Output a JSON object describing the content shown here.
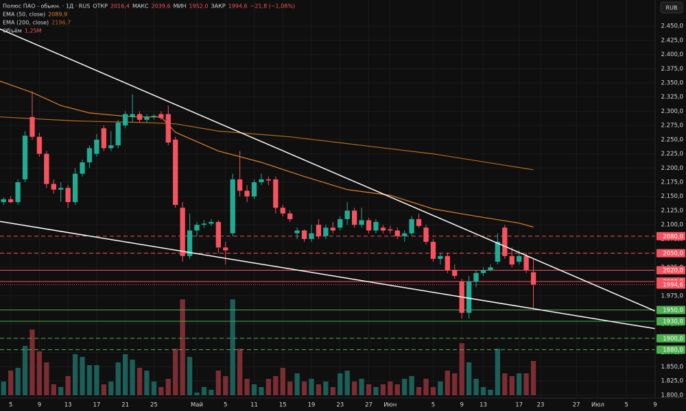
{
  "chart_data": {
    "type": "candlestick",
    "title": "Полюс ПАО - обыкн. · 1Д · RUS",
    "quote": [
      {
        "label": "ОТКР",
        "value": 2016.4,
        "value_label": "2016,4"
      },
      {
        "label": "МАКС",
        "value": 2039.6,
        "value_label": "2039,6"
      },
      {
        "label": "МИН",
        "value": 1952.0,
        "value_label": "1952,0"
      },
      {
        "label": "ЗАКР",
        "value": 1994.6,
        "value_label": "1994,6"
      }
    ],
    "change": {
      "value": -21.8,
      "value_label": "−21,8 (−1,08%)"
    },
    "currency": "RUB",
    "up_color": "#22ab94",
    "down_color": "#f7525f",
    "up_volume_color": "#1b5f58",
    "down_volume_color": "#7b2d33",
    "grid": true,
    "ylim": [
      1772,
      2496
    ],
    "xlim": [
      -0.5,
      91
    ],
    "vol_lim": [
      0,
      4.5
    ],
    "yticks": [
      {
        "value": 1800,
        "label": "1.800,0"
      },
      {
        "value": 1825,
        "label": "1.825,0"
      },
      {
        "value": 1850,
        "label": "1.850,0"
      },
      {
        "value": 1875,
        "label": "1.875,0"
      },
      {
        "value": 1900,
        "label": "1.900,0"
      },
      {
        "value": 1925,
        "label": "1.925,0"
      },
      {
        "value": 1950,
        "label": "1.950,0"
      },
      {
        "value": 1975,
        "label": "1.975,0"
      },
      {
        "value": 2000,
        "label": "2.000,0"
      },
      {
        "value": 2025,
        "label": "2.025,0"
      },
      {
        "value": 2050,
        "label": "2.050,0"
      },
      {
        "value": 2075,
        "label": "2.075,0"
      },
      {
        "value": 2100,
        "label": "2.100,0"
      },
      {
        "value": 2125,
        "label": "2.125,0"
      },
      {
        "value": 2150,
        "label": "2.150,0"
      },
      {
        "value": 2175,
        "label": "2.175,0"
      },
      {
        "value": 2200,
        "label": "2.200,0"
      },
      {
        "value": 2225,
        "label": "2.225,0"
      },
      {
        "value": 2250,
        "label": "2.250,0"
      },
      {
        "value": 2275,
        "label": "2.275,0"
      },
      {
        "value": 2300,
        "label": "2.300,0"
      },
      {
        "value": 2325,
        "label": "2.325,0"
      },
      {
        "value": 2350,
        "label": "2.350,0"
      },
      {
        "value": 2375,
        "label": "2.375,0"
      },
      {
        "value": 2400,
        "label": "2.400,0"
      },
      {
        "value": 2425,
        "label": "2.425,0"
      },
      {
        "value": 2450,
        "label": "2.450,0"
      }
    ],
    "xticks": [
      {
        "value": 1,
        "label": "5"
      },
      {
        "value": 5,
        "label": "9"
      },
      {
        "value": 9,
        "label": "13"
      },
      {
        "value": 13,
        "label": "17"
      },
      {
        "value": 17,
        "label": "21"
      },
      {
        "value": 21,
        "label": "25"
      },
      {
        "value": 27,
        "label": "Май"
      },
      {
        "value": 31,
        "label": "5"
      },
      {
        "value": 35,
        "label": "11"
      },
      {
        "value": 39,
        "label": "15"
      },
      {
        "value": 43,
        "label": "19"
      },
      {
        "value": 47,
        "label": "23"
      },
      {
        "value": 51,
        "label": "27"
      },
      {
        "value": 54,
        "label": "Июн"
      },
      {
        "value": 60,
        "label": "5"
      },
      {
        "value": 64,
        "label": "9"
      },
      {
        "value": 67,
        "label": "13"
      },
      {
        "value": 72,
        "label": "17"
      },
      {
        "value": 75,
        "label": "23"
      },
      {
        "value": 80,
        "label": "27"
      },
      {
        "value": 83,
        "label": "Июл"
      },
      {
        "value": 87,
        "label": "5"
      },
      {
        "value": 91,
        "label": "9"
      }
    ],
    "open": [
      2140,
      2145,
      2140,
      2180,
      2290,
      2255,
      2225,
      2172,
      2162,
      2165,
      2140,
      2190,
      2210,
      2225,
      2270,
      2235,
      2240,
      2275,
      2290,
      2295,
      2285,
      2290,
      2295,
      2295,
      2250,
      2130,
      2045,
      2090,
      2100,
      2102,
      2105,
      2060,
      2085,
      2180,
      2160,
      2150,
      2175,
      2180,
      2180,
      2130,
      2120,
      2085,
      2090,
      2075,
      2100,
      2080,
      2095,
      2095,
      2110,
      2125,
      2100,
      2108,
      2090,
      2095,
      2092,
      2090,
      2080,
      2085,
      2110,
      2095,
      2070,
      2040,
      2045,
      2020,
      2000,
      1945,
      2000,
      2015,
      2020,
      2035,
      2095,
      2045,
      2035,
      2045,
      2016.4
    ],
    "high": [
      2148,
      2150,
      2180,
      2265,
      2335,
      2262,
      2230,
      2180,
      2175,
      2170,
      2200,
      2215,
      2240,
      2260,
      2275,
      2265,
      2285,
      2300,
      2330,
      2300,
      2295,
      2295,
      2300,
      2310,
      2255,
      2140,
      2120,
      2105,
      2108,
      2110,
      2108,
      2070,
      2190,
      2230,
      2170,
      2180,
      2190,
      2185,
      2185,
      2135,
      2125,
      2095,
      2092,
      2100,
      2110,
      2100,
      2105,
      2115,
      2140,
      2130,
      2130,
      2112,
      2110,
      2100,
      2098,
      2095,
      2090,
      2115,
      2120,
      2100,
      2075,
      2050,
      2050,
      2030,
      2005,
      2010,
      2020,
      2025,
      2030,
      2085,
      2100,
      2060,
      2055,
      2050,
      2039.6
    ],
    "low": [
      2135,
      2138,
      2135,
      2175,
      2250,
      2220,
      2165,
      2155,
      2140,
      2130,
      2135,
      2185,
      2200,
      2220,
      2230,
      2230,
      2235,
      2270,
      2280,
      2280,
      2280,
      2285,
      2285,
      2240,
      2130,
      2035,
      2040,
      2080,
      2095,
      2098,
      2050,
      2030,
      2080,
      2150,
      2140,
      2145,
      2170,
      2170,
      2120,
      2115,
      2105,
      2075,
      2070,
      2070,
      2075,
      2075,
      2085,
      2090,
      2100,
      2095,
      2095,
      2085,
      2085,
      2085,
      2085,
      2075,
      2070,
      2080,
      2095,
      2065,
      2035,
      2030,
      2015,
      2005,
      1935,
      1935,
      1990,
      2010,
      2018,
      2030,
      2040,
      2025,
      2030,
      2015,
      1952.0
    ],
    "close": [
      2145,
      2140,
      2175,
      2257,
      2255,
      2225,
      2172,
      2162,
      2165,
      2140,
      2190,
      2210,
      2235,
      2250,
      2235,
      2240,
      2280,
      2295,
      2295,
      2285,
      2290,
      2292,
      2288,
      2245,
      2135,
      2045,
      2090,
      2100,
      2102,
      2105,
      2060,
      2055,
      2180,
      2160,
      2150,
      2175,
      2180,
      2178,
      2130,
      2120,
      2110,
      2090,
      2075,
      2085,
      2080,
      2095,
      2090,
      2110,
      2125,
      2100,
      2108,
      2090,
      2105,
      2090,
      2090,
      2080,
      2085,
      2110,
      2098,
      2070,
      2040,
      2045,
      2020,
      2010,
      1945,
      2000,
      2015,
      2020,
      2025,
      2070,
      2045,
      2030,
      2045,
      2020,
      1994.6
    ],
    "volume": [
      0.5,
      0.9,
      1.0,
      1.8,
      2.4,
      1.6,
      1.2,
      0.4,
      0.3,
      0.7,
      1.5,
      1.4,
      1.1,
      1.1,
      0.4,
      0.5,
      1.2,
      1.5,
      1.3,
      1.0,
      0.9,
      0.5,
      0.3,
      0.6,
      1.7,
      3.5,
      1.4,
      0.1,
      0.3,
      0.2,
      0.9,
      0.7,
      3.5,
      1.7,
      0.6,
      0.4,
      0.3,
      0.6,
      0.7,
      1.0,
      0.5,
      0.8,
      0.5,
      0.6,
      0.4,
      0.5,
      0.3,
      0.8,
      0.9,
      0.5,
      0.6,
      0.4,
      0.3,
      0.4,
      0.5,
      0.4,
      0.6,
      0.7,
      0.3,
      0.6,
      0.3,
      0.5,
      0.9,
      0.8,
      1.9,
      1.2,
      0.6,
      0.3,
      0.2,
      1.7,
      0.8,
      0.7,
      0.8,
      0.8,
      1.25
    ],
    "volume_legend": {
      "name": "Объём",
      "value": 1.25,
      "value_label": "1,25M"
    },
    "ema": [
      {
        "name": "EMA (50, close)",
        "color": "#e0812c",
        "value": 2089.9,
        "value_label": "2089,9",
        "x": [
          -0.5,
          4,
          8,
          12,
          18,
          22,
          24,
          30,
          36,
          42,
          48,
          54,
          60,
          66,
          72,
          74
        ],
        "values": [
          2353,
          2333,
          2310,
          2297,
          2290,
          2290,
          2263,
          2230,
          2210,
          2185,
          2162,
          2152,
          2128,
          2115,
          2103,
          2096
        ]
      },
      {
        "name": "EMA (200, close)",
        "color": "#b86a1d",
        "value": 2196.7,
        "value_label": "2196,7",
        "x": [
          -0.5,
          10,
          20,
          24,
          30,
          40,
          50,
          60,
          70,
          74
        ],
        "values": [
          2290,
          2283,
          2280,
          2278,
          2265,
          2255,
          2240,
          2225,
          2205,
          2197
        ]
      }
    ],
    "trendlines": [
      {
        "color": "#ffffff",
        "x": [
          -0.5,
          91
        ],
        "values": [
          2445,
          1948
        ]
      },
      {
        "color": "#ffffff",
        "x": [
          -0.5,
          91
        ],
        "values": [
          2106,
          1917
        ]
      }
    ],
    "levels": [
      {
        "value": 2080,
        "label": "2080,0",
        "color": "#f7525f",
        "style": "dashed"
      },
      {
        "value": 2050,
        "label": "2050,0",
        "color": "#f7525f",
        "style": "dashed"
      },
      {
        "value": 2020,
        "label": "2020,0",
        "color": "#f7525f",
        "style": "solid"
      },
      {
        "value": 2000,
        "label": "2000,0",
        "color": "#f7525f",
        "style": "solid"
      },
      {
        "value": 1994.6,
        "label": "1994,6",
        "color": "#f7525f",
        "style": "dotted"
      },
      {
        "value": 1950,
        "label": "1950,0",
        "color": "#4caf50",
        "style": "solid"
      },
      {
        "value": 1930,
        "label": "1930,0",
        "color": "#4caf50",
        "style": "solid"
      },
      {
        "value": 1900,
        "label": "1900,0",
        "color": "#4caf50",
        "style": "dashed"
      },
      {
        "value": 1880,
        "label": "1880,0",
        "color": "#4caf50",
        "style": "dashed"
      }
    ]
  }
}
